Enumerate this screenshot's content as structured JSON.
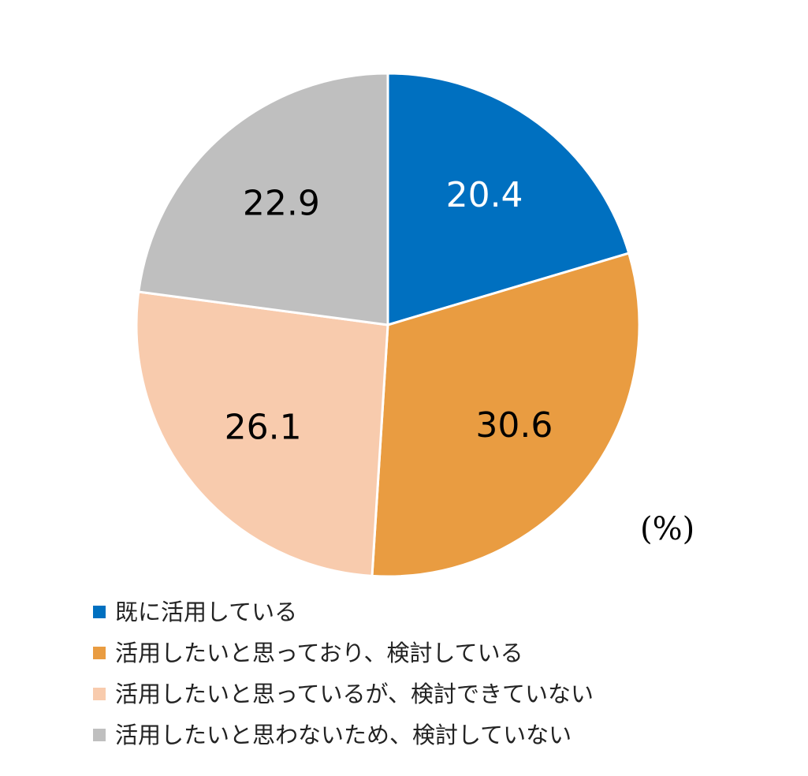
{
  "chart_data": {
    "type": "pie",
    "unit_label": "(%)",
    "start_angle_deg": 0,
    "direction": "clockwise",
    "slices": [
      {
        "label": "既に活用している",
        "value": 20.4,
        "color": "#0070C0",
        "label_color": "#ffffff"
      },
      {
        "label": "活用したいと思っており、検討している",
        "value": 30.6,
        "color": "#E99C41",
        "label_color": "#000000"
      },
      {
        "label": "活用したいと思っているが、検討できていない",
        "value": 26.1,
        "color": "#F8CBAD",
        "label_color": "#000000"
      },
      {
        "label": "活用したいと思わないため、検討していない",
        "value": 22.9,
        "color": "#BFBFBF",
        "label_color": "#000000"
      }
    ],
    "legend_position": "bottom-left"
  }
}
